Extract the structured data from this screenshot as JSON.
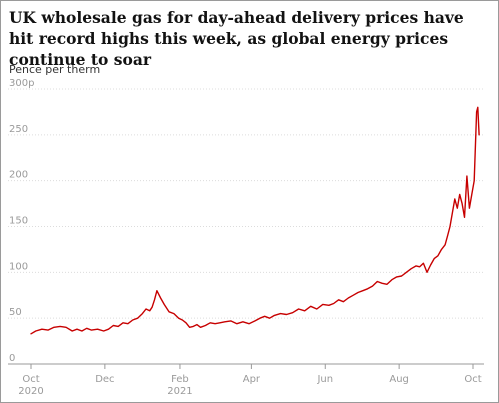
{
  "chart_data": {
    "type": "line",
    "title": "UK wholesale gas for day-ahead delivery prices have hit record highs this week, as global energy prices continue to soar",
    "ylabel": "Pence per therm",
    "xlabel": "",
    "ylim": [
      0,
      300
    ],
    "y_ticks": [
      "0",
      "50",
      "100",
      "150",
      "200",
      "250",
      "300p"
    ],
    "y_tick_values": [
      0,
      50,
      100,
      150,
      200,
      250,
      300
    ],
    "x_ticks": [
      {
        "label": "Oct",
        "sublabel": "2020",
        "date": "2020-10-01"
      },
      {
        "label": "Dec",
        "sublabel": "",
        "date": "2020-12-01"
      },
      {
        "label": "Feb",
        "sublabel": "2021",
        "date": "2021-02-01"
      },
      {
        "label": "Apr",
        "sublabel": "",
        "date": "2021-04-01"
      },
      {
        "label": "Jun",
        "sublabel": "",
        "date": "2021-06-01"
      },
      {
        "label": "Aug",
        "sublabel": "",
        "date": "2021-08-01"
      },
      {
        "label": "Oct",
        "sublabel": "",
        "date": "2021-10-01"
      }
    ],
    "grid": true,
    "legend": "none",
    "line_color": "#c70000",
    "series": [
      {
        "x": [
          "2020-10-01",
          "2020-10-05",
          "2020-10-10",
          "2020-10-15",
          "2020-10-20",
          "2020-10-25",
          "2020-10-30",
          "2020-11-04",
          "2020-11-08",
          "2020-11-12",
          "2020-11-16",
          "2020-11-20",
          "2020-11-25",
          "2020-11-30",
          "2020-12-04",
          "2020-12-08",
          "2020-12-12",
          "2020-12-16",
          "2020-12-20",
          "2020-12-24",
          "2020-12-28",
          "2021-01-01",
          "2021-01-04",
          "2021-01-07",
          "2021-01-09",
          "2021-01-11",
          "2021-01-13",
          "2021-01-16",
          "2021-01-19",
          "2021-01-23",
          "2021-01-27",
          "2021-01-31",
          "2021-02-03",
          "2021-02-06",
          "2021-02-09",
          "2021-02-12",
          "2021-02-15",
          "2021-02-18",
          "2021-02-22",
          "2021-02-26",
          "2021-03-02",
          "2021-03-06",
          "2021-03-10",
          "2021-03-15",
          "2021-03-20",
          "2021-03-25",
          "2021-03-30",
          "2021-04-04",
          "2021-04-08",
          "2021-04-12",
          "2021-04-16",
          "2021-04-20",
          "2021-04-25",
          "2021-04-30",
          "2021-05-05",
          "2021-05-10",
          "2021-05-15",
          "2021-05-20",
          "2021-05-25",
          "2021-05-30",
          "2021-06-04",
          "2021-06-08",
          "2021-06-12",
          "2021-06-16",
          "2021-06-20",
          "2021-06-24",
          "2021-06-28",
          "2021-07-02",
          "2021-07-06",
          "2021-07-10",
          "2021-07-14",
          "2021-07-18",
          "2021-07-22",
          "2021-07-26",
          "2021-07-30",
          "2021-08-03",
          "2021-08-07",
          "2021-08-11",
          "2021-08-15",
          "2021-08-18",
          "2021-08-21",
          "2021-08-24",
          "2021-08-27",
          "2021-08-30",
          "2021-09-02",
          "2021-09-05",
          "2021-09-08",
          "2021-09-10",
          "2021-09-12",
          "2021-09-14",
          "2021-09-16",
          "2021-09-18",
          "2021-09-20",
          "2021-09-22",
          "2021-09-24",
          "2021-09-26",
          "2021-09-28",
          "2021-09-30",
          "2021-10-02",
          "2021-10-04",
          "2021-10-05",
          "2021-10-06"
        ],
        "y": [
          33,
          36,
          38,
          37,
          40,
          41,
          40,
          36,
          38,
          36,
          39,
          37,
          38,
          36,
          38,
          42,
          41,
          45,
          44,
          48,
          50,
          55,
          60,
          58,
          62,
          70,
          80,
          72,
          65,
          57,
          55,
          50,
          48,
          45,
          40,
          41,
          43,
          40,
          42,
          45,
          44,
          45,
          46,
          47,
          44,
          46,
          44,
          47,
          50,
          52,
          50,
          53,
          55,
          54,
          56,
          60,
          58,
          63,
          60,
          65,
          64,
          66,
          70,
          68,
          72,
          75,
          78,
          80,
          82,
          85,
          90,
          88,
          87,
          92,
          95,
          96,
          100,
          104,
          107,
          106,
          110,
          100,
          108,
          115,
          118,
          125,
          130,
          140,
          150,
          165,
          180,
          170,
          185,
          175,
          160,
          205,
          170,
          185,
          200,
          275,
          280,
          250
        ]
      }
    ]
  }
}
